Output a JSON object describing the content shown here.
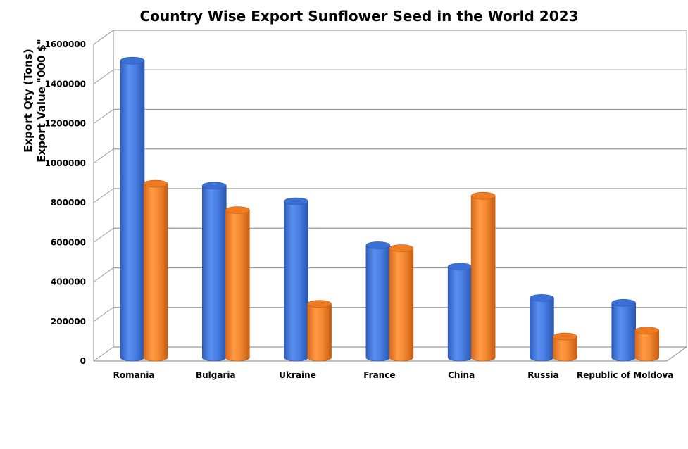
{
  "chart_data": {
    "type": "bar",
    "title": "Country Wise Export Sunflower Seed in the World 2023",
    "ylabel_lines": [
      "Export Qty (Tons)",
      "Export Value \"000 $\""
    ],
    "xlabel": "",
    "categories": [
      "Romania",
      "Bulgaria",
      "Ukraine",
      "France",
      "China",
      "Russia",
      "Republic of Moldova"
    ],
    "series": [
      {
        "values": [
          1520000,
          880000,
          800000,
          575000,
          465000,
          305000,
          280000
        ],
        "color": "#3f74dc"
      },
      {
        "values": [
          890000,
          755000,
          275000,
          560000,
          828000,
          108000,
          138000
        ],
        "color": "#f5812a"
      }
    ],
    "ylim": [
      0,
      1600000
    ],
    "yticks": [
      0,
      200000,
      400000,
      600000,
      800000,
      1000000,
      1200000,
      1400000,
      1600000
    ],
    "grid": true,
    "style": "3d-cylinder"
  }
}
